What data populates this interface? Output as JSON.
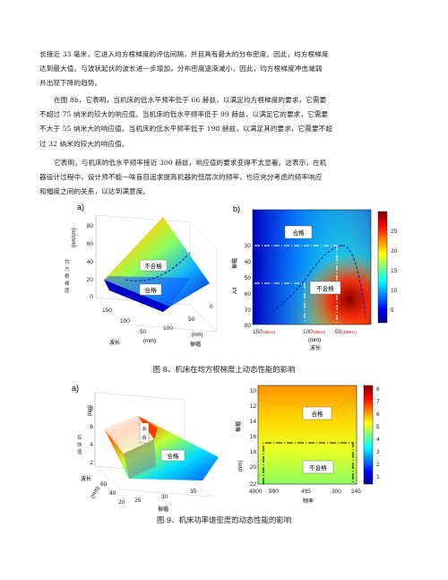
{
  "paragraphs": [
    [
      "长接近 33 毫米，它进入均方根梯度的评估间隔，并且具有最大的分布密度。因此，均方根梯度",
      "达到最大值。与波状起伏的波长进一步增加，分布密度逐渐减小，因此，均方根梯度冲击减弱",
      "并出现下降的趋势。"
    ],
    [
      "在图 8b，它表明，当机床的低水平频率低于 66 赫兹，以满足均方根梯度的要求，它需要",
      "不超过 75 纳米的较大的响应值。当机床的低水平频率低于 99 赫兹，以满足它的要求，它需要",
      "不大于 55 纳米大的响应值。当机床的低水平频率低于 198 赫兹，以满足其的要求，它需要不超",
      "过 32 纳米的较大的响应值。"
    ],
    [
      "它表明，与机床的低水平频率接近 300 赫兹，响应值的要求变得不太显著。这表示，在机",
      "器设计过程中，设计师不能一味盲目追求提高机器的低层次的频率，也应充分考虑的频率响应",
      "和幅度之间的关系，以达到满意度。"
    ]
  ],
  "fig8": {
    "caption": "图 8、机床在均方根梯度上动态性能的影响",
    "a": {
      "panel_label": "a)",
      "zlabel": [
        "均",
        "方",
        "根",
        "梯",
        "度"
      ],
      "zunit": "(nm/cm)",
      "zticks": [
        "80",
        "60",
        "40",
        "20",
        "0"
      ],
      "region_fail": "不合格",
      "region_pass": "合格",
      "wave_ticks": [
        "150",
        "100",
        "50"
      ],
      "wave_unit": "(mm)",
      "wave_label": "波长",
      "amp_ticks": [
        "100",
        "50",
        "0"
      ],
      "amp_unit": "(nm)",
      "amp_label": "振幅"
    },
    "b": {
      "panel_label": "b)",
      "ylabel": "振幅",
      "yunit": "A/t",
      "yticks": [
        "30",
        "40",
        "50",
        "60",
        "70",
        "80"
      ],
      "xticks": [
        "150",
        "100",
        "50"
      ],
      "xfreq": [
        "(66Hz)",
        "(99Hz)",
        "(198Hz)"
      ],
      "xunit": "(mm)",
      "xlabel": "波长",
      "region_pass": "合格",
      "region_fail": "不合格",
      "cbar_ticks": [
        "25",
        "20",
        "15",
        "10",
        "5"
      ]
    }
  },
  "fig9": {
    "caption": "图 9、机床功率谱密度的动态性能的影响",
    "a": {
      "panel_label": "a)",
      "zlabel": [
        "有",
        "效",
        "值"
      ],
      "zunit": "(nm)",
      "zticks": [
        "8",
        "6",
        "4",
        "2"
      ],
      "region_fail": "不合格",
      "region_pass": "合格",
      "wave_ticks": [
        "60",
        "40",
        "20"
      ],
      "wave_unit": "(mm)",
      "wave_label": "波长",
      "amp_ticks": [
        "25",
        "30",
        "35"
      ],
      "amp_label": "振幅"
    },
    "b": {
      "panel_label": "b)",
      "ylabel": "振幅",
      "yticks": [
        "10",
        "12",
        "14",
        "16",
        "18",
        "20",
        "22"
      ],
      "yunit": "(nm)",
      "xticks": [
        "4000",
        "990",
        "495",
        "300",
        "245"
      ],
      "xlabel": "频率",
      "region_pass": "合格",
      "region_fail": "不合格",
      "cbar_ticks": [
        "8",
        "7",
        "6",
        "5",
        "4",
        "3",
        "2",
        "1"
      ]
    }
  }
}
